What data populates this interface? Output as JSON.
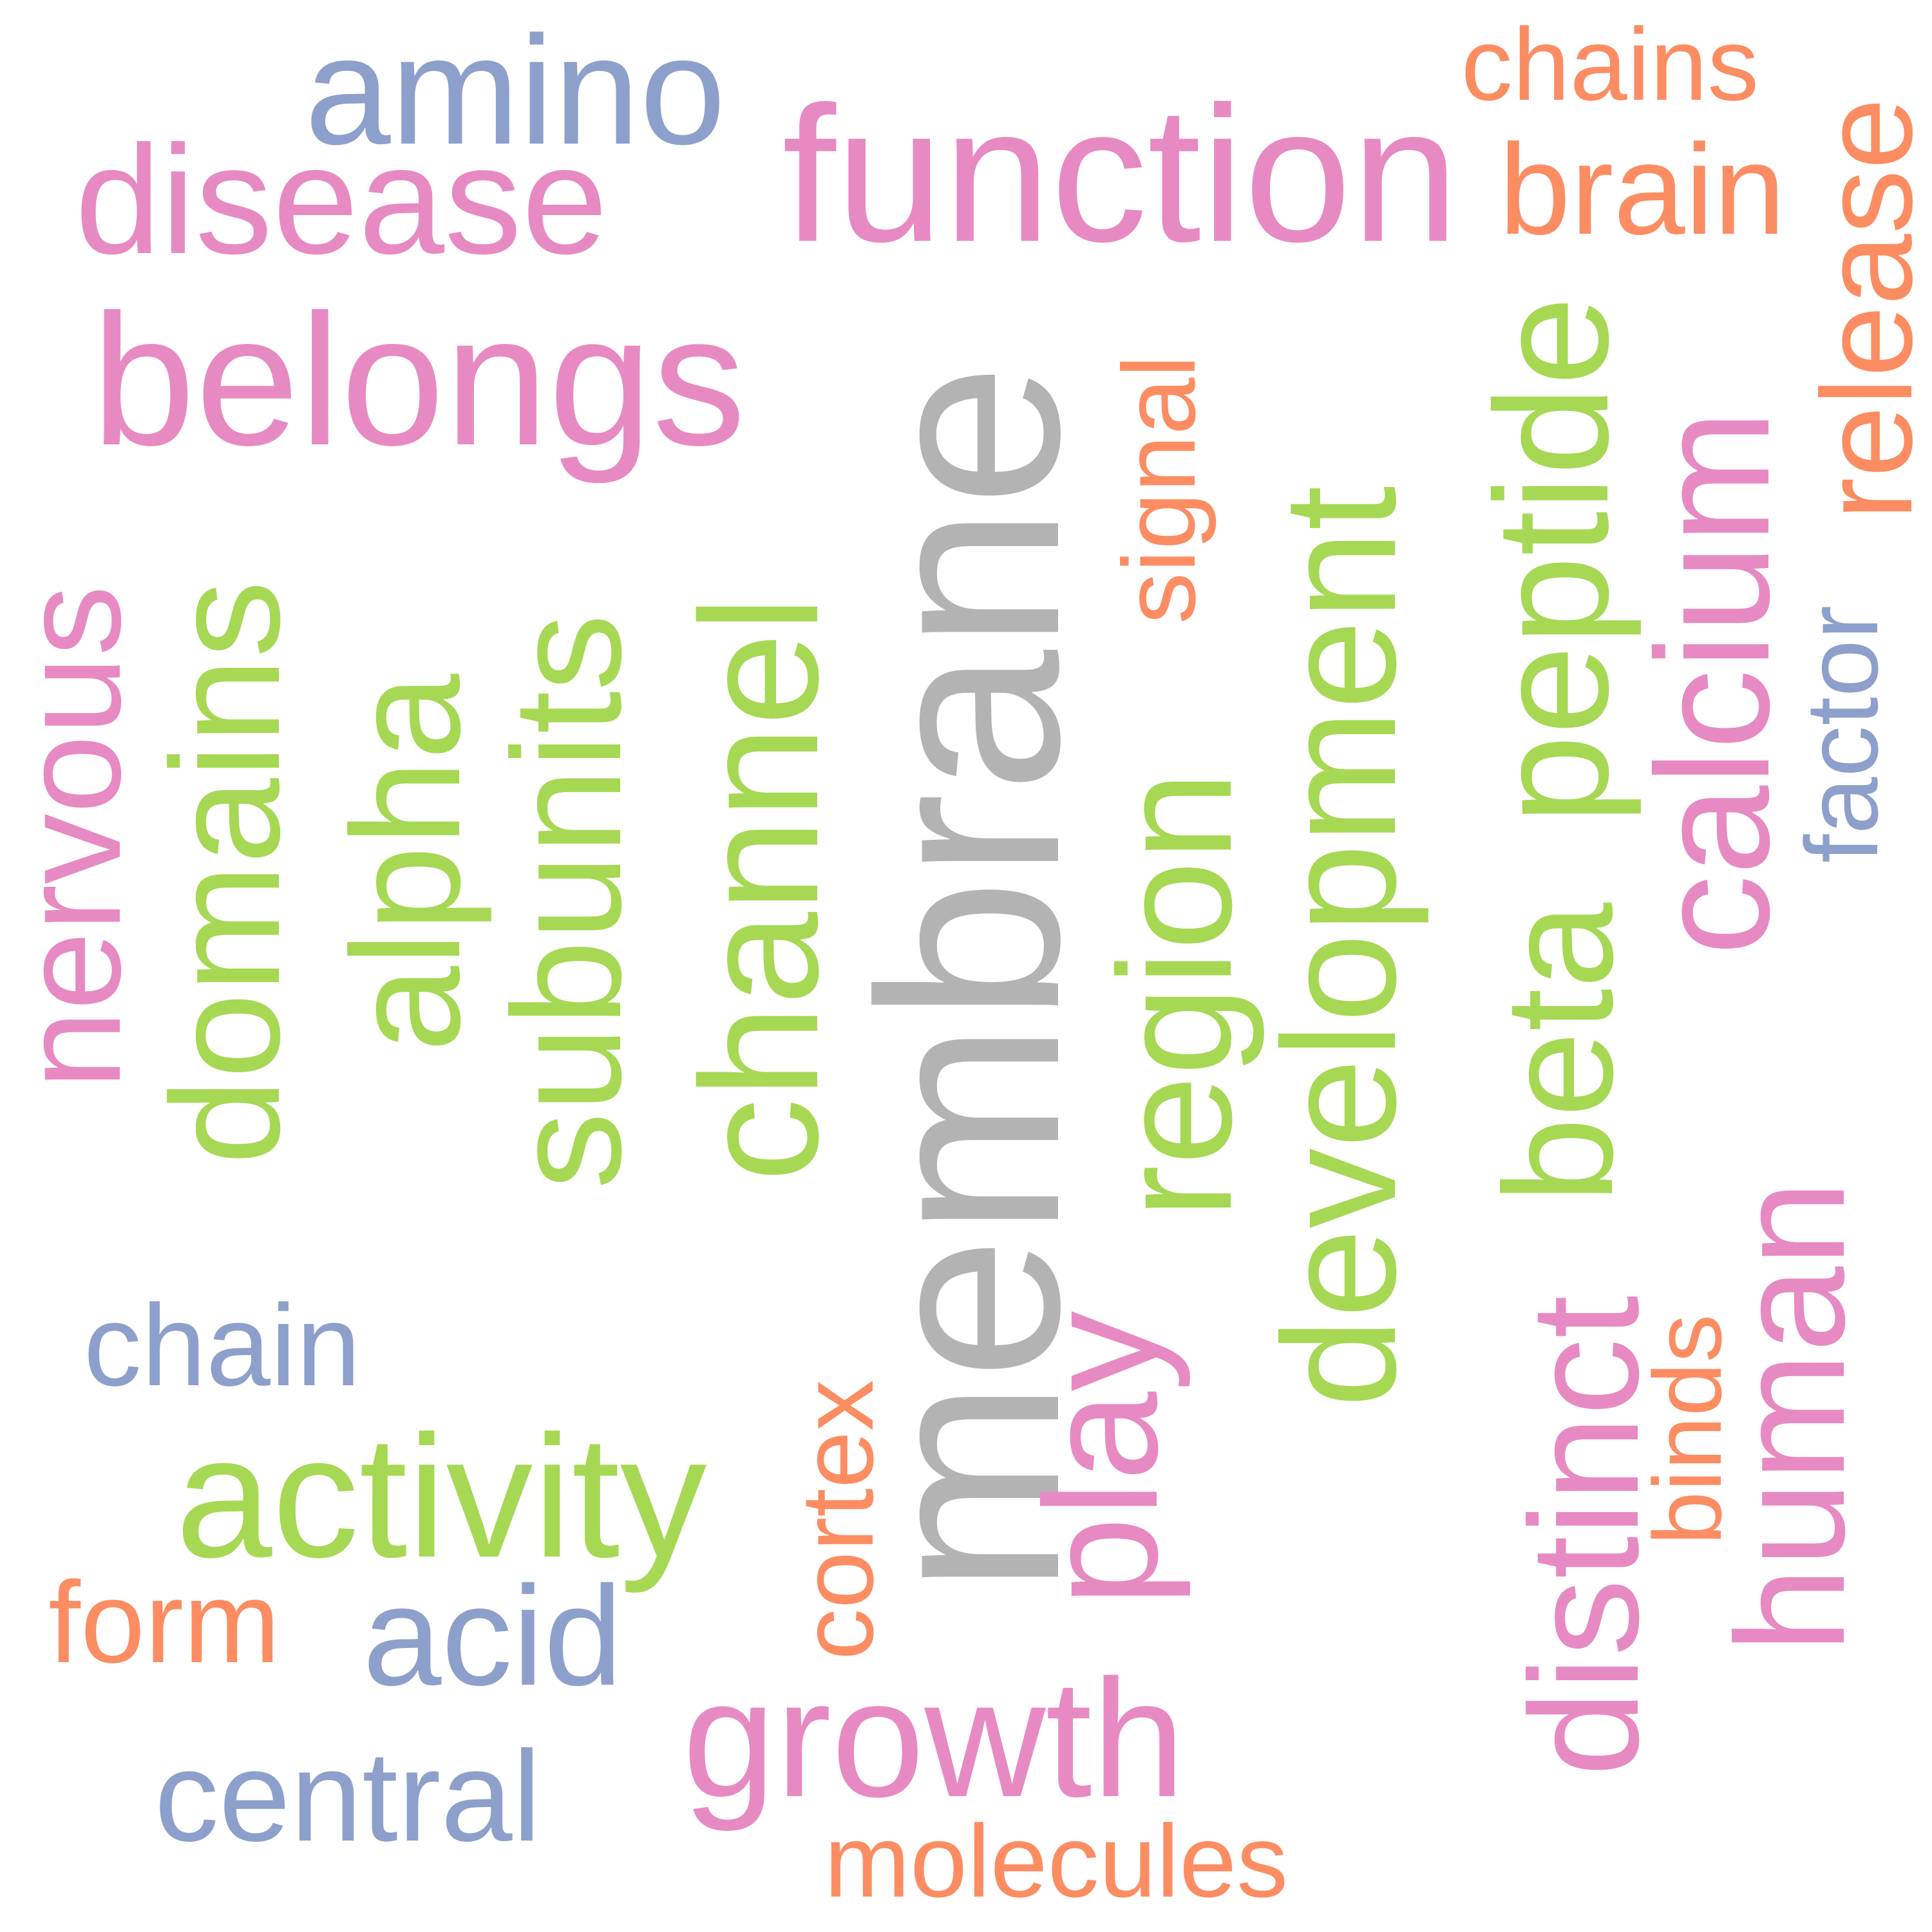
{
  "colors": {
    "pink": "#e78ac3",
    "green": "#a6d854",
    "orange": "#fc8d62",
    "blue": "#8da0cb",
    "gray": "#b3b3b3"
  },
  "words": [
    {
      "text": "membrane",
      "color": "#b3b3b3",
      "orientation": "vertical"
    },
    {
      "text": "function",
      "color": "#e78ac3",
      "orientation": "horizontal"
    },
    {
      "text": "belongs",
      "color": "#e78ac3",
      "orientation": "horizontal"
    },
    {
      "text": "disease",
      "color": "#e78ac3",
      "orientation": "horizontal"
    },
    {
      "text": "amino",
      "color": "#8da0cb",
      "orientation": "horizontal"
    },
    {
      "text": "chains",
      "color": "#fc8d62",
      "orientation": "horizontal"
    },
    {
      "text": "brain",
      "color": "#fc8d62",
      "orientation": "horizontal"
    },
    {
      "text": "release",
      "color": "#fc8d62",
      "orientation": "vertical"
    },
    {
      "text": "factor",
      "color": "#8da0cb",
      "orientation": "vertical"
    },
    {
      "text": "calcium",
      "color": "#e78ac3",
      "orientation": "vertical"
    },
    {
      "text": "peptide",
      "color": "#a6d854",
      "orientation": "vertical"
    },
    {
      "text": "development",
      "color": "#a6d854",
      "orientation": "vertical"
    },
    {
      "text": "signal",
      "color": "#fc8d62",
      "orientation": "vertical"
    },
    {
      "text": "region",
      "color": "#a6d854",
      "orientation": "vertical"
    },
    {
      "text": "channel",
      "color": "#a6d854",
      "orientation": "vertical"
    },
    {
      "text": "subunits",
      "color": "#a6d854",
      "orientation": "vertical"
    },
    {
      "text": "alpha",
      "color": "#a6d854",
      "orientation": "vertical"
    },
    {
      "text": "domains",
      "color": "#a6d854",
      "orientation": "vertical"
    },
    {
      "text": "nervous",
      "color": "#e78ac3",
      "orientation": "vertical"
    },
    {
      "text": "beta",
      "color": "#a6d854",
      "orientation": "vertical"
    },
    {
      "text": "human",
      "color": "#e78ac3",
      "orientation": "vertical"
    },
    {
      "text": "binds",
      "color": "#fc8d62",
      "orientation": "vertical"
    },
    {
      "text": "distinct",
      "color": "#e78ac3",
      "orientation": "vertical"
    },
    {
      "text": "play",
      "color": "#e78ac3",
      "orientation": "vertical"
    },
    {
      "text": "cortex",
      "color": "#fc8d62",
      "orientation": "vertical"
    },
    {
      "text": "chain",
      "color": "#8da0cb",
      "orientation": "horizontal"
    },
    {
      "text": "activity",
      "color": "#a6d854",
      "orientation": "horizontal"
    },
    {
      "text": "form",
      "color": "#fc8d62",
      "orientation": "horizontal"
    },
    {
      "text": "acid",
      "color": "#8da0cb",
      "orientation": "horizontal"
    },
    {
      "text": "central",
      "color": "#8da0cb",
      "orientation": "horizontal"
    },
    {
      "text": "growth",
      "color": "#e78ac3",
      "orientation": "horizontal"
    },
    {
      "text": "molecules",
      "color": "#fc8d62",
      "orientation": "horizontal"
    }
  ]
}
